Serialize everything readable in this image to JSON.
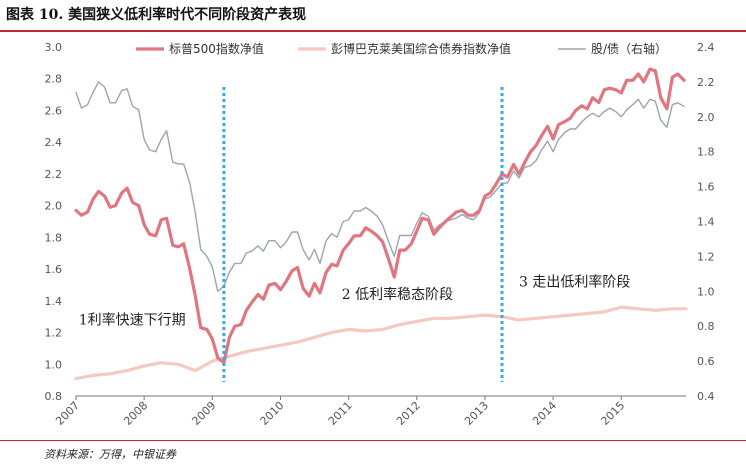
{
  "figure": {
    "title": "图表 10. 美国狭义低利率时代不同阶段资产表现",
    "source": "资料来源：万得，中银证券"
  },
  "chart_data": {
    "type": "line",
    "title": "图表 10. 美国狭义低利率时代不同阶段资产表现",
    "x_tick_labels": [
      "2007",
      "2008",
      "2009",
      "2010",
      "2011",
      "2012",
      "2013",
      "2014",
      "2015"
    ],
    "xlim": [
      2007.0,
      2015.95
    ],
    "y_left": {
      "ylim": [
        0.8,
        3.0
      ],
      "ticks": [
        0.8,
        1.0,
        1.2,
        1.4,
        1.6,
        1.8,
        2.0,
        2.2,
        2.4,
        2.6,
        2.8,
        3.0
      ]
    },
    "y_right": {
      "ylim": [
        0.4,
        2.4
      ],
      "ticks": [
        0.4,
        0.6,
        0.8,
        1.0,
        1.2,
        1.4,
        1.6,
        1.8,
        2.0,
        2.2,
        2.4
      ]
    },
    "grid": false,
    "legend_position": "top",
    "series": [
      {
        "name": "标普500指数净值",
        "axis": "left",
        "color": "#e07680",
        "x": [
          2007.0,
          2007.08,
          2007.17,
          2007.25,
          2007.33,
          2007.42,
          2007.5,
          2007.58,
          2007.67,
          2007.75,
          2007.83,
          2007.92,
          2008.0,
          2008.08,
          2008.17,
          2008.25,
          2008.33,
          2008.42,
          2008.5,
          2008.58,
          2008.67,
          2008.75,
          2008.83,
          2008.92,
          2009.0,
          2009.08,
          2009.17,
          2009.25,
          2009.33,
          2009.42,
          2009.5,
          2009.58,
          2009.67,
          2009.75,
          2009.83,
          2009.92,
          2010.0,
          2010.08,
          2010.17,
          2010.25,
          2010.33,
          2010.42,
          2010.5,
          2010.58,
          2010.67,
          2010.75,
          2010.83,
          2010.92,
          2011.0,
          2011.08,
          2011.17,
          2011.25,
          2011.33,
          2011.42,
          2011.5,
          2011.58,
          2011.67,
          2011.75,
          2011.83,
          2011.92,
          2012.0,
          2012.08,
          2012.17,
          2012.25,
          2012.33,
          2012.42,
          2012.5,
          2012.58,
          2012.67,
          2012.75,
          2012.83,
          2012.92,
          2013.0,
          2013.08,
          2013.17,
          2013.25,
          2013.33,
          2013.42,
          2013.5,
          2013.58,
          2013.67,
          2013.75,
          2013.83,
          2013.92,
          2014.0,
          2014.08,
          2014.17,
          2014.25,
          2014.33,
          2014.42,
          2014.5,
          2014.58,
          2014.67,
          2014.75,
          2014.83,
          2014.92,
          2015.0,
          2015.08,
          2015.17,
          2015.25,
          2015.33,
          2015.42,
          2015.5,
          2015.58,
          2015.67,
          2015.75,
          2015.83,
          2015.92
        ],
        "y": [
          1.97,
          1.94,
          1.96,
          2.04,
          2.09,
          2.06,
          1.99,
          2.0,
          2.08,
          2.11,
          2.02,
          2.0,
          1.88,
          1.82,
          1.81,
          1.91,
          1.92,
          1.75,
          1.74,
          1.76,
          1.6,
          1.43,
          1.23,
          1.22,
          1.16,
          1.04,
          1.01,
          1.17,
          1.24,
          1.25,
          1.34,
          1.39,
          1.44,
          1.41,
          1.5,
          1.51,
          1.47,
          1.52,
          1.59,
          1.61,
          1.48,
          1.43,
          1.51,
          1.45,
          1.58,
          1.63,
          1.62,
          1.72,
          1.76,
          1.81,
          1.81,
          1.86,
          1.84,
          1.81,
          1.77,
          1.67,
          1.55,
          1.72,
          1.72,
          1.76,
          1.84,
          1.92,
          1.91,
          1.82,
          1.86,
          1.9,
          1.93,
          1.96,
          1.97,
          1.94,
          1.94,
          1.97,
          2.06,
          2.08,
          2.14,
          2.2,
          2.18,
          2.26,
          2.2,
          2.27,
          2.34,
          2.38,
          2.44,
          2.5,
          2.42,
          2.51,
          2.53,
          2.55,
          2.6,
          2.63,
          2.61,
          2.68,
          2.65,
          2.73,
          2.74,
          2.73,
          2.71,
          2.79,
          2.79,
          2.83,
          2.78,
          2.86,
          2.85,
          2.68,
          2.61,
          2.81,
          2.83,
          2.79
        ]
      },
      {
        "name": "彭博巴克莱美国综合债券指数净值",
        "axis": "left",
        "color": "#f5c9c0",
        "x": [
          2007.0,
          2007.25,
          2007.5,
          2007.75,
          2008.0,
          2008.25,
          2008.5,
          2008.75,
          2009.0,
          2009.25,
          2009.5,
          2009.75,
          2010.0,
          2010.25,
          2010.5,
          2010.75,
          2011.0,
          2011.25,
          2011.5,
          2011.75,
          2012.0,
          2012.25,
          2012.5,
          2012.75,
          2013.0,
          2013.25,
          2013.5,
          2013.75,
          2014.0,
          2014.25,
          2014.5,
          2014.75,
          2015.0,
          2015.25,
          2015.5,
          2015.75,
          2015.95
        ],
        "y": [
          0.91,
          0.93,
          0.94,
          0.96,
          0.99,
          1.01,
          1.0,
          0.96,
          1.02,
          1.05,
          1.08,
          1.1,
          1.12,
          1.14,
          1.17,
          1.2,
          1.22,
          1.21,
          1.22,
          1.25,
          1.27,
          1.29,
          1.29,
          1.3,
          1.31,
          1.3,
          1.28,
          1.29,
          1.3,
          1.31,
          1.32,
          1.33,
          1.36,
          1.35,
          1.34,
          1.35,
          1.35
        ]
      },
      {
        "name": "股/债（右轴）",
        "axis": "right",
        "color": "#9aa4b4",
        "x": [
          2007.0,
          2007.08,
          2007.17,
          2007.25,
          2007.33,
          2007.42,
          2007.5,
          2007.58,
          2007.67,
          2007.75,
          2007.83,
          2007.92,
          2008.0,
          2008.08,
          2008.17,
          2008.25,
          2008.33,
          2008.42,
          2008.5,
          2008.58,
          2008.67,
          2008.75,
          2008.83,
          2008.92,
          2009.0,
          2009.08,
          2009.17,
          2009.25,
          2009.33,
          2009.42,
          2009.5,
          2009.58,
          2009.67,
          2009.75,
          2009.83,
          2009.92,
          2010.0,
          2010.08,
          2010.17,
          2010.25,
          2010.33,
          2010.42,
          2010.5,
          2010.58,
          2010.67,
          2010.75,
          2010.83,
          2010.92,
          2011.0,
          2011.08,
          2011.17,
          2011.25,
          2011.33,
          2011.42,
          2011.5,
          2011.58,
          2011.67,
          2011.75,
          2011.83,
          2011.92,
          2012.0,
          2012.08,
          2012.17,
          2012.25,
          2012.33,
          2012.42,
          2012.5,
          2012.58,
          2012.67,
          2012.75,
          2012.83,
          2012.92,
          2013.0,
          2013.08,
          2013.17,
          2013.25,
          2013.33,
          2013.42,
          2013.5,
          2013.58,
          2013.67,
          2013.75,
          2013.83,
          2013.92,
          2014.0,
          2014.08,
          2014.17,
          2014.25,
          2014.33,
          2014.42,
          2014.5,
          2014.58,
          2014.67,
          2014.75,
          2014.83,
          2014.92,
          2015.0,
          2015.08,
          2015.17,
          2015.25,
          2015.33,
          2015.42,
          2015.5,
          2015.58,
          2015.67,
          2015.75,
          2015.83,
          2015.92
        ],
        "y": [
          2.14,
          2.05,
          2.07,
          2.14,
          2.2,
          2.17,
          2.08,
          2.08,
          2.15,
          2.16,
          2.06,
          2.04,
          1.87,
          1.81,
          1.8,
          1.87,
          1.92,
          1.74,
          1.73,
          1.73,
          1.62,
          1.45,
          1.24,
          1.2,
          1.14,
          1.0,
          1.03,
          1.11,
          1.16,
          1.16,
          1.22,
          1.23,
          1.26,
          1.23,
          1.29,
          1.29,
          1.25,
          1.28,
          1.34,
          1.34,
          1.24,
          1.18,
          1.24,
          1.16,
          1.29,
          1.33,
          1.31,
          1.4,
          1.41,
          1.46,
          1.46,
          1.48,
          1.46,
          1.43,
          1.38,
          1.29,
          1.2,
          1.32,
          1.32,
          1.32,
          1.39,
          1.45,
          1.43,
          1.35,
          1.38,
          1.4,
          1.41,
          1.42,
          1.44,
          1.42,
          1.41,
          1.45,
          1.53,
          1.54,
          1.58,
          1.62,
          1.62,
          1.69,
          1.65,
          1.71,
          1.72,
          1.75,
          1.81,
          1.86,
          1.8,
          1.87,
          1.91,
          1.93,
          1.93,
          1.97,
          2.0,
          2.02,
          2.0,
          2.03,
          2.05,
          2.03,
          2.0,
          2.04,
          2.07,
          2.1,
          2.05,
          2.1,
          2.09,
          1.98,
          1.94,
          2.07,
          2.08,
          2.06
        ]
      }
    ],
    "vlines": [
      {
        "x": 2009.17,
        "color": "#3aa8e4"
      },
      {
        "x": 2013.25,
        "color": "#3aa8e4"
      }
    ],
    "annotations": [
      {
        "text": "1利率快速下行期",
        "x": 2007.04,
        "y": 1.25
      },
      {
        "text": "2 低利率稳态阶段",
        "x": 2010.9,
        "y": 1.41
      },
      {
        "text": "3 走出低利率阶段",
        "x": 2013.5,
        "y": 1.49
      }
    ]
  }
}
